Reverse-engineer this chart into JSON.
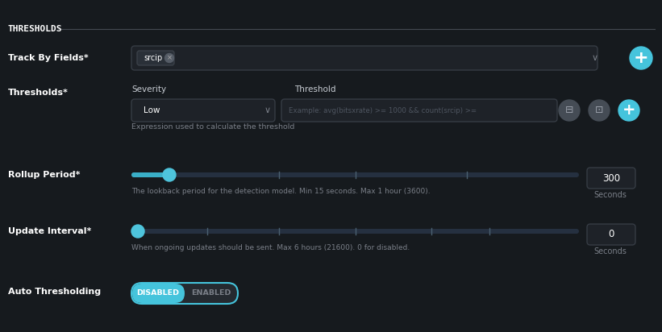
{
  "bg_color": "#161a1e",
  "input_bg": "#1e2228",
  "input_border": "#363c44",
  "cyan_color": "#45c4dc",
  "button_gray": "#454c55",
  "white": "#ffffff",
  "muted_color": "#7a7f88",
  "label_color": "#c8cdd4",
  "title": "THRESHOLDS",
  "track_by_label": "Track By Fields*",
  "track_by_tag": "srcip",
  "thresholds_label": "Thresholds*",
  "severity_label": "Severity",
  "threshold_label": "Threshold",
  "severity_value": "Low",
  "threshold_placeholder": "Example: avg(bitsxrate) >= 1000 && count(srcip) >=",
  "threshold_help": "Expression used to calculate the threshold",
  "rollup_label": "Rollup Period*",
  "rollup_value": "300",
  "rollup_help": "The lookback period for the detection model. Min 15 seconds. Max 1 hour (3600).",
  "update_label": "Update Interval*",
  "update_value": "0",
  "update_help": "When ongoing updates should be sent. Max 6 hours (21600). 0 for disabled.",
  "auto_label": "Auto Thresholding",
  "auto_disabled": "DISABLED",
  "auto_enabled": "ENABLED",
  "seconds_label": "Seconds",
  "line_color": "#444a52",
  "tag_bg": "#2a3038",
  "tag_border": "#3a4048",
  "slider_track": "#253040",
  "slider_fill": "#3aafc8",
  "slider_thumb": "#4ec4dc"
}
